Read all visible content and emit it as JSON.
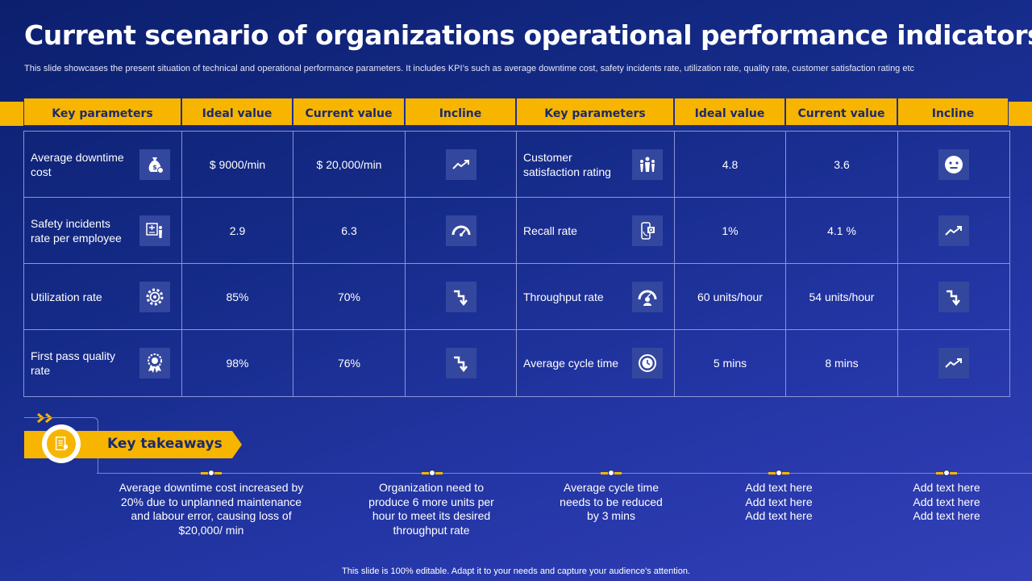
{
  "title": "Current scenario of organizations operational performance indicators",
  "subtitle": "This slide showcases the present situation of technical and operational performance parameters. It includes KPI’s such as average downtime cost, safety incidents rate, utilization rate, quality rate,  customer satisfaction rating etc",
  "headers": [
    "Key parameters",
    "Ideal value",
    "Current value",
    "Incline",
    "Key parameters",
    "Ideal value",
    "Current value",
    "Incline"
  ],
  "rows": [
    {
      "left": {
        "label": "Average downtime cost",
        "icon": "money-bag-icon",
        "ideal": "$ 9000/min",
        "current": "$ 20,000/min",
        "incline": "trend-up-icon"
      },
      "right": {
        "label": "Customer satisfaction rating",
        "icon": "team-icon",
        "ideal": "4.8",
        "current": "3.6",
        "incline": "neutral-face-icon"
      }
    },
    {
      "left": {
        "label": "Safety incidents rate per employee",
        "icon": "safety-board-icon",
        "ideal": "2.9",
        "current": "6.3",
        "incline": "gauge-icon"
      },
      "right": {
        "label": "Recall rate",
        "icon": "phone-recall-icon",
        "ideal": "1%",
        "current": "4.1 %",
        "incline": "trend-up-icon"
      }
    },
    {
      "left": {
        "label": "Utilization rate",
        "icon": "gear-icon",
        "ideal": "85%",
        "current": "70%",
        "incline": "trend-down-icon"
      },
      "right": {
        "label": "Throughput rate",
        "icon": "speedometer-person-icon",
        "ideal": "60 units/hour",
        "current": "54 units/hour",
        "incline": "trend-down-icon"
      }
    },
    {
      "left": {
        "label": "First pass quality rate",
        "icon": "badge-icon",
        "ideal": "98%",
        "current": "76%",
        "incline": "trend-down-icon"
      },
      "right": {
        "label": "Average cycle time",
        "icon": "clock-icon",
        "ideal": "5 mins",
        "current": "8 mins",
        "incline": "trend-up-icon"
      }
    }
  ],
  "key_takeaways": {
    "label": "Key takeaways",
    "items": [
      "Average downtime cost increased by 20% due to unplanned maintenance and labour error, causing loss of $20,000/ min",
      "Organization need to produce 6 more units per hour to meet its desired throughput rate",
      "Average cycle time needs to be reduced by 3 mins",
      "Add text here Add text here Add text here",
      "Add text here Add text here Add text here"
    ]
  },
  "footer": "This slide is 100% editable. Adapt it to your needs and capture your audience's attention.",
  "colors": {
    "accent": "#f7b500",
    "background": "#142a86",
    "header_text": "#1b2a6e"
  }
}
